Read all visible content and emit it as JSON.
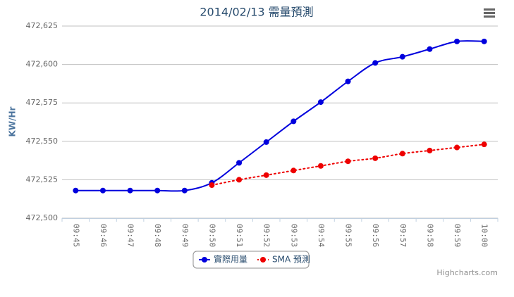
{
  "chart_data": {
    "type": "line",
    "title": "2014/02/13 需量預測",
    "y_axis_label": "KW/Hr",
    "categories": [
      "09:45",
      "09:46",
      "09:47",
      "09:48",
      "09:49",
      "09:50",
      "09:51",
      "09:52",
      "09:53",
      "09:54",
      "09:55",
      "09:56",
      "09:57",
      "09:58",
      "09:59",
      "10:00"
    ],
    "series": [
      {
        "name": "實際用量",
        "color": "#0000dd",
        "dash": "solid",
        "values": [
          472518,
          472518,
          472518,
          472518,
          472518,
          472523,
          472536,
          472549.5,
          472563,
          472575.5,
          472589,
          472601,
          472605,
          472610,
          472615,
          472615
        ]
      },
      {
        "name": "SMA 預測",
        "color": "#ee0000",
        "dash": "dotted",
        "values": [
          null,
          null,
          null,
          null,
          null,
          472521.5,
          472525,
          472528,
          472531,
          472534,
          472537,
          472539,
          472542,
          472544,
          472546,
          472548
        ]
      }
    ],
    "ylim": [
      472500,
      472625
    ],
    "yticks": [
      {
        "value": 472500,
        "label": "472,500"
      },
      {
        "value": 472525,
        "label": "472,525"
      },
      {
        "value": 472550,
        "label": "472,550"
      },
      {
        "value": 472575,
        "label": "472,575"
      },
      {
        "value": 472600,
        "label": "472,600"
      },
      {
        "value": 472625,
        "label": "472,625"
      }
    ],
    "grid": true,
    "credits": "Highcharts.com"
  }
}
